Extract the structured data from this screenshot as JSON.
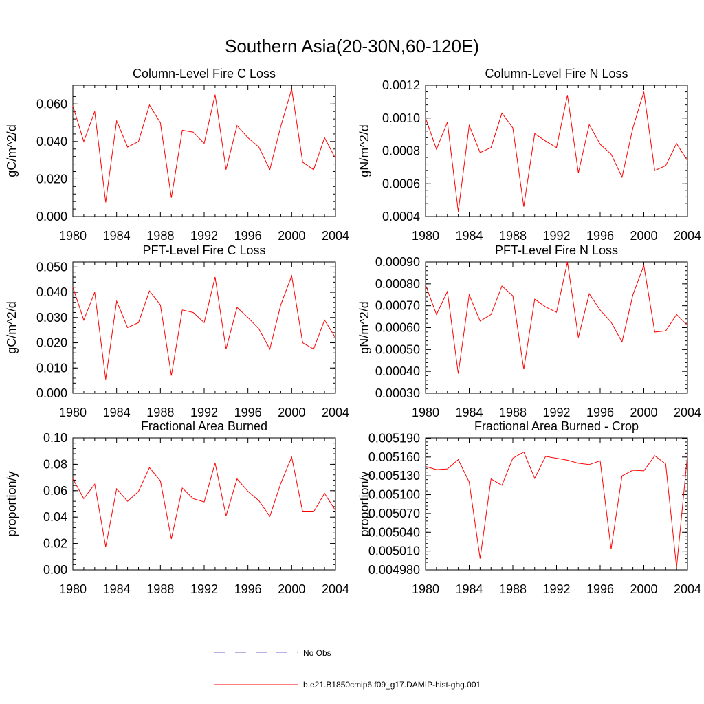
{
  "figure": {
    "title": "Southern Asia(20-30N,60-120E)"
  },
  "legend": {
    "entries": [
      {
        "label": "No Obs",
        "color": "#6666cc",
        "style": "dashed"
      },
      {
        "label": "b.e21.B1850cmip6.f09_g17.DAMIP-hist-ghg.001",
        "color": "#ff0000",
        "style": "solid"
      }
    ]
  },
  "chart_data": [
    {
      "type": "line",
      "title": "Column-Level Fire C Loss",
      "ylabel": "gC/m^2/d",
      "xlim": [
        1980,
        2004
      ],
      "ylim": [
        0,
        0.07
      ],
      "xticks": [
        "1980",
        "1984",
        "1988",
        "1992",
        "1996",
        "2000",
        "2004"
      ],
      "yticks": [
        "0.000",
        "0.020",
        "0.040",
        "0.060"
      ],
      "ytick_values": [
        0,
        0.02,
        0.04,
        0.06
      ],
      "series": [
        {
          "color": "#ff0000",
          "x": [
            1980,
            1981,
            1982,
            1983,
            1984,
            1985,
            1986,
            1987,
            1988,
            1989,
            1990,
            1991,
            1992,
            1993,
            1994,
            1995,
            1996,
            1997,
            1998,
            1999,
            2000,
            2001,
            2002,
            2003,
            2004
          ],
          "values": [
            0.059,
            0.04,
            0.056,
            0.0075,
            0.051,
            0.037,
            0.04,
            0.0595,
            0.05,
            0.01,
            0.046,
            0.045,
            0.039,
            0.065,
            0.025,
            0.0485,
            0.042,
            0.037,
            0.025,
            0.048,
            0.068,
            0.029,
            0.025,
            0.042,
            0.031
          ]
        }
      ]
    },
    {
      "type": "line",
      "title": "Column-Level Fire N Loss",
      "ylabel": "gN/m^2/d",
      "xlim": [
        1980,
        2004
      ],
      "ylim": [
        0.0004,
        0.0012
      ],
      "xticks": [
        "1980",
        "1984",
        "1988",
        "1992",
        "1996",
        "2000",
        "2004"
      ],
      "yticks": [
        "0.0004",
        "0.0006",
        "0.0008",
        "0.0010",
        "0.0012"
      ],
      "ytick_values": [
        0.0004,
        0.0006,
        0.0008,
        0.001,
        0.0012
      ],
      "series": [
        {
          "color": "#ff0000",
          "x": [
            1980,
            1981,
            1982,
            1983,
            1984,
            1985,
            1986,
            1987,
            1988,
            1989,
            1990,
            1991,
            1992,
            1993,
            1994,
            1995,
            1996,
            1997,
            1998,
            1999,
            2000,
            2001,
            2002,
            2003,
            2004
          ],
          "values": [
            0.001,
            0.00081,
            0.000975,
            0.00043,
            0.000955,
            0.00079,
            0.00082,
            0.00103,
            0.00094,
            0.00046,
            0.000905,
            0.00086,
            0.00082,
            0.00114,
            0.000665,
            0.00096,
            0.00084,
            0.00078,
            0.00064,
            0.00094,
            0.00116,
            0.00068,
            0.00071,
            0.000845,
            0.00074
          ]
        }
      ]
    },
    {
      "type": "line",
      "title": "PFT-Level Fire C Loss",
      "ylabel": "gC/m^2/d",
      "xlim": [
        1980,
        2004
      ],
      "ylim": [
        0,
        0.052
      ],
      "xticks": [
        "1980",
        "1984",
        "1988",
        "1992",
        "1996",
        "2000",
        "2004"
      ],
      "yticks": [
        "0.000",
        "0.010",
        "0.020",
        "0.030",
        "0.040",
        "0.050"
      ],
      "ytick_values": [
        0,
        0.01,
        0.02,
        0.03,
        0.04,
        0.05
      ],
      "series": [
        {
          "color": "#ff0000",
          "x": [
            1980,
            1981,
            1982,
            1983,
            1984,
            1985,
            1986,
            1987,
            1988,
            1989,
            1990,
            1991,
            1992,
            1993,
            1994,
            1995,
            1996,
            1997,
            1998,
            1999,
            2000,
            2001,
            2002,
            2003,
            2004
          ],
          "values": [
            0.042,
            0.029,
            0.04,
            0.0055,
            0.0365,
            0.026,
            0.028,
            0.0405,
            0.035,
            0.007,
            0.033,
            0.032,
            0.028,
            0.046,
            0.0175,
            0.034,
            0.03,
            0.0255,
            0.0175,
            0.035,
            0.0465,
            0.02,
            0.0175,
            0.029,
            0.022
          ]
        }
      ]
    },
    {
      "type": "line",
      "title": "PFT-Level Fire N Loss",
      "ylabel": "gN/m^2/d",
      "xlim": [
        1980,
        2004
      ],
      "ylim": [
        0.0003,
        0.0009
      ],
      "xticks": [
        "1980",
        "1984",
        "1988",
        "1992",
        "1996",
        "2000",
        "2004"
      ],
      "yticks": [
        "0.00030",
        "0.00040",
        "0.00050",
        "0.00060",
        "0.00070",
        "0.00080",
        "0.00090"
      ],
      "ytick_values": [
        0.0003,
        0.0004,
        0.0005,
        0.0006,
        0.0007,
        0.0008,
        0.0009
      ],
      "series": [
        {
          "color": "#ff0000",
          "x": [
            1980,
            1981,
            1982,
            1983,
            1984,
            1985,
            1986,
            1987,
            1988,
            1989,
            1990,
            1991,
            1992,
            1993,
            1994,
            1995,
            1996,
            1997,
            1998,
            1999,
            2000,
            2001,
            2002,
            2003,
            2004
          ],
          "values": [
            0.000795,
            0.00066,
            0.000765,
            0.00039,
            0.00075,
            0.00063,
            0.00066,
            0.00079,
            0.000745,
            0.00041,
            0.00073,
            0.000695,
            0.00067,
            0.0009,
            0.000555,
            0.000755,
            0.00068,
            0.000625,
            0.000535,
            0.00075,
            0.000885,
            0.00058,
            0.000585,
            0.00066,
            0.00061
          ]
        }
      ]
    },
    {
      "type": "line",
      "title": "Fractional Area Burned",
      "ylabel": "proportion/y",
      "xlim": [
        1980,
        2004
      ],
      "ylim": [
        0,
        0.1
      ],
      "xticks": [
        "1980",
        "1984",
        "1988",
        "1992",
        "1996",
        "2000",
        "2004"
      ],
      "yticks": [
        "0.00",
        "0.02",
        "0.04",
        "0.06",
        "0.08",
        "0.10"
      ],
      "ytick_values": [
        0,
        0.02,
        0.04,
        0.06,
        0.08,
        0.1
      ],
      "series": [
        {
          "color": "#ff0000",
          "x": [
            1980,
            1981,
            1982,
            1983,
            1984,
            1985,
            1986,
            1987,
            1988,
            1989,
            1990,
            1991,
            1992,
            1993,
            1994,
            1995,
            1996,
            1997,
            1998,
            1999,
            2000,
            2001,
            2002,
            2003,
            2004
          ],
          "values": [
            0.069,
            0.054,
            0.065,
            0.0175,
            0.0615,
            0.052,
            0.0595,
            0.0775,
            0.0675,
            0.0235,
            0.062,
            0.054,
            0.0515,
            0.081,
            0.041,
            0.069,
            0.0595,
            0.0525,
            0.0405,
            0.0655,
            0.0855,
            0.044,
            0.044,
            0.058,
            0.045
          ]
        }
      ]
    },
    {
      "type": "line",
      "title": "Fractional Area Burned - Crop",
      "ylabel": "proportion/y",
      "xlim": [
        1980,
        2004
      ],
      "ylim": [
        0.00498,
        0.0051905
      ],
      "xticks": [
        "1980",
        "1984",
        "1988",
        "1992",
        "1996",
        "2000",
        "2004"
      ],
      "yticks": [
        "0.004980",
        "0.005010",
        "0.005040",
        "0.005070",
        "0.005100",
        "0.005130",
        "0.005160",
        "0.005190"
      ],
      "ytick_values": [
        0.00498,
        0.00501,
        0.00504,
        0.00507,
        0.0051,
        0.00513,
        0.00516,
        0.00519
      ],
      "series": [
        {
          "color": "#ff0000",
          "x": [
            1980,
            1981,
            1982,
            1983,
            1984,
            1985,
            1986,
            1987,
            1988,
            1989,
            1990,
            1991,
            1992,
            1993,
            1994,
            1995,
            1996,
            1997,
            1998,
            1999,
            2000,
            2001,
            2002,
            2003,
            2004
          ],
          "values": [
            0.005145,
            0.00514,
            0.005141,
            0.005156,
            0.00512,
            0.004998,
            0.005125,
            0.005115,
            0.005158,
            0.005168,
            0.005126,
            0.005161,
            0.005158,
            0.005155,
            0.00515,
            0.005148,
            0.005154,
            0.005013,
            0.00513,
            0.005139,
            0.005138,
            0.005162,
            0.005149,
            0.004984,
            0.005163
          ]
        }
      ]
    }
  ]
}
